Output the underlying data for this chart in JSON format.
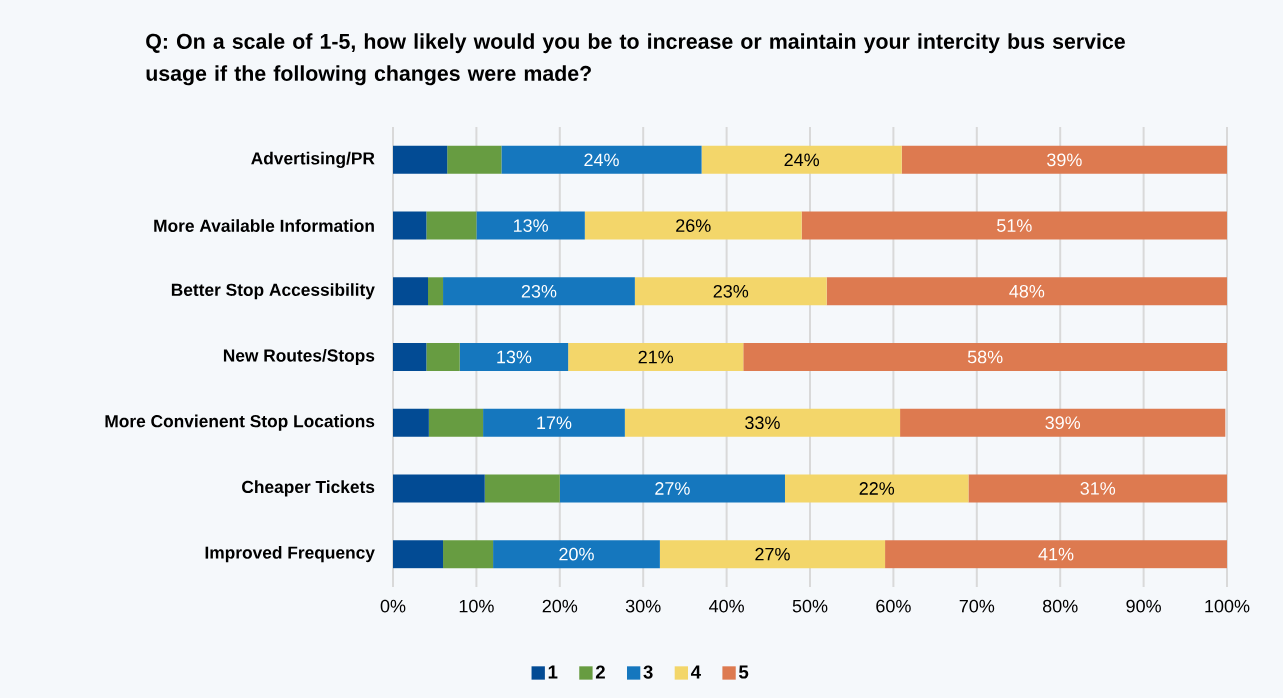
{
  "chart_data": {
    "type": "bar",
    "orientation": "horizontal",
    "stacked": true,
    "title": "Q: On a scale of 1-5, how likely would you be to increase or maintain your intercity bus service usage if the following changes were made?",
    "categories": [
      "Advertising/PR",
      "More Available Information",
      "Better Stop Accessibility",
      "New Routes/Stops",
      "More Convienent Stop Locations",
      "Cheaper Tickets",
      "Improved Frequency"
    ],
    "series": [
      {
        "name": "1",
        "color": "#024b94",
        "values": [
          6.5,
          4.0,
          4.2,
          4.0,
          4.3,
          11.0,
          6.0
        ]
      },
      {
        "name": "2",
        "color": "#679c41",
        "values": [
          6.5,
          6.0,
          1.8,
          4.0,
          6.5,
          9.0,
          6.0
        ]
      },
      {
        "name": "3",
        "color": "#1577be",
        "values": [
          24,
          13,
          23,
          13,
          17,
          27,
          20
        ],
        "value_labels": [
          "24%",
          "13%",
          "23%",
          "13%",
          "17%",
          "27%",
          "20%"
        ]
      },
      {
        "name": "4",
        "color": "#f3d66a",
        "values": [
          24,
          26,
          23,
          21,
          33,
          22,
          27
        ],
        "value_labels": [
          "24%",
          "26%",
          "23%",
          "21%",
          "33%",
          "22%",
          "27%"
        ]
      },
      {
        "name": "5",
        "color": "#dd7a50",
        "values": [
          39,
          51,
          48,
          58,
          39,
          31,
          41
        ],
        "value_labels": [
          "39%",
          "51%",
          "48%",
          "58%",
          "39%",
          "31%",
          "41%"
        ]
      }
    ],
    "xlim": [
      0,
      100
    ],
    "xticks": [
      {
        "value": 0,
        "label": "0%"
      },
      {
        "value": 10,
        "label": "10%"
      },
      {
        "value": 20,
        "label": "20%"
      },
      {
        "value": 30,
        "label": "30%"
      },
      {
        "value": 40,
        "label": "40%"
      },
      {
        "value": 50,
        "label": "50%"
      },
      {
        "value": 60,
        "label": "60%"
      },
      {
        "value": 70,
        "label": "70%"
      },
      {
        "value": 80,
        "label": "80%"
      },
      {
        "value": 90,
        "label": "90%"
      },
      {
        "value": 100,
        "label": "100%"
      }
    ],
    "grid": "x",
    "legend": "bottom"
  }
}
